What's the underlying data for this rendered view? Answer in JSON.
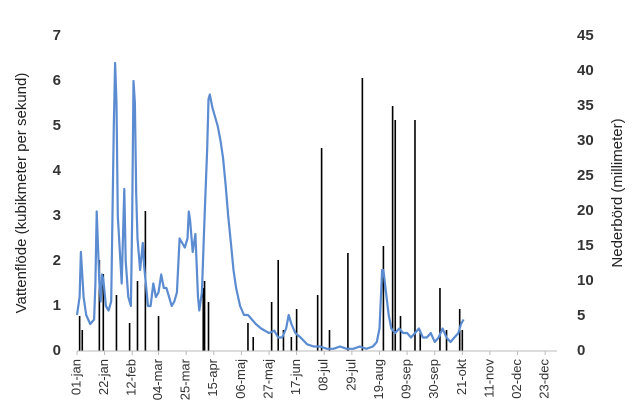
{
  "chart_data": {
    "type": "combo",
    "y_label": "Vattenflöde (kubikmeter per sekund)",
    "y2_label": "Nederbörd (millimeter)",
    "xlim": [
      0,
      365
    ],
    "xticks": [
      {
        "value": 0,
        "label": "01-jan"
      },
      {
        "value": 21,
        "label": "22-jan"
      },
      {
        "value": 42,
        "label": "12-feb"
      },
      {
        "value": 62,
        "label": "04-mar"
      },
      {
        "value": 83,
        "label": "25-mar"
      },
      {
        "value": 104,
        "label": "15-apr"
      },
      {
        "value": 125,
        "label": "06-maj"
      },
      {
        "value": 146,
        "label": "27-maj"
      },
      {
        "value": 167,
        "label": "17-jun"
      },
      {
        "value": 188,
        "label": "08-jul"
      },
      {
        "value": 209,
        "label": "29-jul"
      },
      {
        "value": 230,
        "label": "19-aug"
      },
      {
        "value": 251,
        "label": "09-sep"
      },
      {
        "value": 272,
        "label": "30-sep"
      },
      {
        "value": 293,
        "label": "21-okt"
      },
      {
        "value": 314,
        "label": "11-nov"
      },
      {
        "value": 335,
        "label": "02-dec"
      },
      {
        "value": 356,
        "label": "23-dec"
      }
    ],
    "ylim": [
      0,
      7
    ],
    "yticks": [
      0,
      1,
      2,
      3,
      4,
      5,
      6,
      7
    ],
    "y2lim": [
      0,
      45
    ],
    "y2ticks": [
      0,
      5,
      10,
      15,
      20,
      25,
      30,
      35,
      40,
      45
    ],
    "series": [
      {
        "type": "bar",
        "axis": "y2",
        "color": "#000000",
        "x": [
          2,
          4,
          17,
          20,
          30,
          40,
          46,
          52,
          62,
          96,
          97,
          100,
          130,
          134,
          148,
          153,
          157,
          163,
          167,
          183,
          186,
          192,
          206,
          217,
          233,
          240,
          242,
          246,
          257,
          261,
          276,
          281,
          291,
          293
        ],
        "values": [
          5,
          3,
          13,
          11,
          8,
          4,
          10,
          20,
          5,
          9,
          10,
          7,
          4,
          2,
          7,
          13,
          3,
          2,
          6,
          8,
          29,
          3,
          14,
          39,
          15,
          35,
          33,
          5,
          33,
          3,
          9,
          3,
          6,
          3
        ]
      },
      {
        "type": "line",
        "axis": "y",
        "color": "#5b8bd0",
        "x": [
          0,
          2,
          3,
          5,
          7,
          10,
          13,
          14,
          15,
          17,
          18,
          19,
          20,
          22,
          24,
          26,
          28,
          29,
          30,
          31,
          33,
          34,
          36,
          37,
          39,
          41,
          42,
          43,
          44,
          45,
          46,
          48,
          50,
          51,
          53,
          54,
          56,
          58,
          60,
          62,
          64,
          66,
          68,
          70,
          72,
          74,
          76,
          78,
          80,
          82,
          84,
          85,
          86,
          88,
          90,
          92,
          93,
          95,
          97,
          99,
          100,
          101,
          103,
          105,
          107,
          109,
          111,
          113,
          115,
          117,
          119,
          121,
          124,
          127,
          130,
          133,
          136,
          140,
          143,
          146,
          150,
          153,
          156,
          159,
          161,
          163,
          166,
          170,
          175,
          180,
          185,
          190,
          195,
          200,
          205,
          210,
          215,
          220,
          225,
          228,
          230,
          232,
          233,
          235,
          237,
          239,
          242,
          245,
          248,
          251,
          254,
          257,
          260,
          263,
          266,
          269,
          272,
          275,
          278,
          281,
          284,
          287,
          290,
          292,
          294
        ],
        "values": [
          0.8,
          1.2,
          2.2,
          1.2,
          0.8,
          0.6,
          0.7,
          1.5,
          3.1,
          1.5,
          1.1,
          1.7,
          1.6,
          1.0,
          0.9,
          1.1,
          5.0,
          6.4,
          5.5,
          3.0,
          2.0,
          1.5,
          3.6,
          2.0,
          1.2,
          1.0,
          3.0,
          6.0,
          5.5,
          3.5,
          2.5,
          1.8,
          2.4,
          1.9,
          1.3,
          1.0,
          1.0,
          1.5,
          1.2,
          1.3,
          1.7,
          1.4,
          1.4,
          1.2,
          1.0,
          1.1,
          1.3,
          2.5,
          2.4,
          2.3,
          2.5,
          3.1,
          2.9,
          2.2,
          2.6,
          1.2,
          0.9,
          1.3,
          3.0,
          4.5,
          5.6,
          5.7,
          5.4,
          5.2,
          5.0,
          4.7,
          4.3,
          3.7,
          3.0,
          2.4,
          1.8,
          1.4,
          1.0,
          0.8,
          0.8,
          0.7,
          0.6,
          0.5,
          0.45,
          0.4,
          0.45,
          0.3,
          0.3,
          0.5,
          0.8,
          0.6,
          0.4,
          0.3,
          0.15,
          0.1,
          0.1,
          0.05,
          0.05,
          0.1,
          0.05,
          0.05,
          0.1,
          0.05,
          0.1,
          0.2,
          0.5,
          1.8,
          1.8,
          1.3,
          0.8,
          0.5,
          0.4,
          0.5,
          0.4,
          0.4,
          0.3,
          0.4,
          0.5,
          0.3,
          0.3,
          0.4,
          0.2,
          0.3,
          0.5,
          0.3,
          0.2,
          0.3,
          0.4,
          0.6,
          0.7
        ]
      }
    ]
  }
}
